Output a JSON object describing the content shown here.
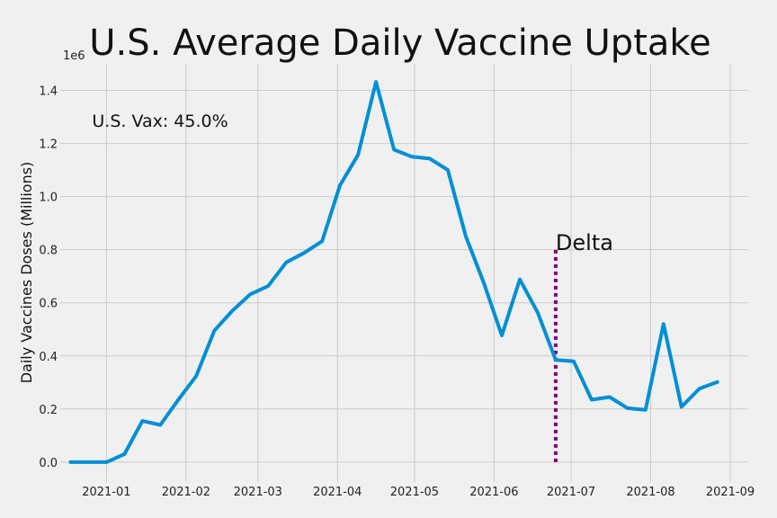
{
  "chart_data": {
    "type": "line",
    "title": "U.S. Average Daily Vaccine Uptake",
    "xlabel": "",
    "ylabel": "Daily Vaccines Doses (Millions)",
    "y_offset_label": "1e6",
    "x_date_range": [
      "2020-12-14",
      "2021-09-08"
    ],
    "ylim": [
      -75000,
      1500000
    ],
    "y_ticks": [
      0,
      200000,
      400000,
      600000,
      800000,
      1000000,
      1200000,
      1400000
    ],
    "y_tick_labels": [
      "0.0",
      "0.2",
      "0.4",
      "0.6",
      "0.8",
      "1.0",
      "1.2",
      "1.4"
    ],
    "x_ticks": [
      "2021-01-01",
      "2021-02-01",
      "2021-03-01",
      "2021-04-01",
      "2021-05-01",
      "2021-06-01",
      "2021-07-01",
      "2021-08-01",
      "2021-09-01"
    ],
    "x_tick_labels": [
      "2021-01",
      "2021-02",
      "2021-03",
      "2021-04",
      "2021-05",
      "2021-06",
      "2021-07",
      "2021-08",
      "2021-09"
    ],
    "grid": true,
    "series": [
      {
        "color": "#008fd5",
        "points": [
          [
            "2020-12-18",
            0
          ],
          [
            "2020-12-25",
            0
          ],
          [
            "2021-01-01",
            0
          ],
          [
            "2021-01-08",
            30000
          ],
          [
            "2021-01-15",
            155000
          ],
          [
            "2021-01-22",
            140000
          ],
          [
            "2021-01-29",
            235000
          ],
          [
            "2021-02-05",
            325000
          ],
          [
            "2021-02-12",
            495000
          ],
          [
            "2021-02-19",
            570000
          ],
          [
            "2021-02-26",
            632000
          ],
          [
            "2021-03-05",
            663000
          ],
          [
            "2021-03-12",
            752000
          ],
          [
            "2021-03-19",
            788000
          ],
          [
            "2021-03-26",
            832000
          ],
          [
            "2021-04-02",
            1043000
          ],
          [
            "2021-04-09",
            1157000
          ],
          [
            "2021-04-16",
            1432000
          ],
          [
            "2021-04-23",
            1177000
          ],
          [
            "2021-04-30",
            1150000
          ],
          [
            "2021-05-07",
            1143000
          ],
          [
            "2021-05-14",
            1100000
          ],
          [
            "2021-05-21",
            850000
          ],
          [
            "2021-05-28",
            675000
          ],
          [
            "2021-06-04",
            477000
          ],
          [
            "2021-06-11",
            688000
          ],
          [
            "2021-06-18",
            563000
          ],
          [
            "2021-06-25",
            385000
          ],
          [
            "2021-07-02",
            380000
          ],
          [
            "2021-07-09",
            235000
          ],
          [
            "2021-07-16",
            245000
          ],
          [
            "2021-07-23",
            203000
          ],
          [
            "2021-07-30",
            197000
          ],
          [
            "2021-08-06",
            520000
          ],
          [
            "2021-08-13",
            208000
          ],
          [
            "2021-08-20",
            277000
          ],
          [
            "2021-08-27",
            302000
          ]
        ]
      }
    ],
    "annotations": [
      {
        "text": "U.S. Vax: 45.0%",
        "x": "2021-01-01",
        "y": 1280000
      },
      {
        "text": "Delta",
        "x": "2021-06-25",
        "y": 820000
      }
    ],
    "vline": {
      "x": "2021-06-25",
      "y_from": 0,
      "y_to": 800000,
      "color": "#800080",
      "style": "dotted"
    }
  }
}
